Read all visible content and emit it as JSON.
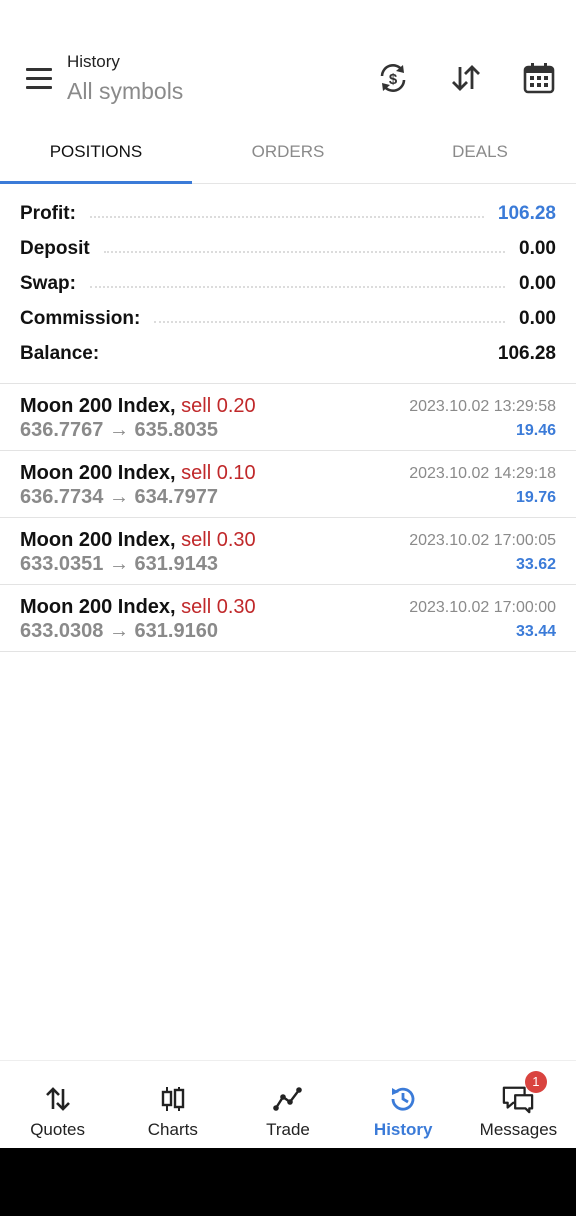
{
  "header": {
    "title_small": "History",
    "title_big": "All symbols"
  },
  "tabs": [
    {
      "label": "POSITIONS",
      "active": true
    },
    {
      "label": "ORDERS",
      "active": false
    },
    {
      "label": "DEALS",
      "active": false
    }
  ],
  "summary": [
    {
      "label": "Profit:",
      "value": "106.28"
    },
    {
      "label": "Deposit",
      "value": "0.00"
    },
    {
      "label": "Swap:",
      "value": "0.00"
    },
    {
      "label": "Commission:",
      "value": "0.00"
    },
    {
      "label": "Balance:",
      "value": "106.28"
    }
  ],
  "deals": [
    {
      "symbol": "Moon 200 Index,",
      "side": "sell 0.20",
      "open": "636.7767",
      "close": "635.8035",
      "time": "2023.10.02 13:29:58",
      "profit": "19.46"
    },
    {
      "symbol": "Moon 200 Index,",
      "side": "sell 0.10",
      "open": "636.7734",
      "close": "634.7977",
      "time": "2023.10.02 14:29:18",
      "profit": "19.76"
    },
    {
      "symbol": "Moon 200 Index,",
      "side": "sell 0.30",
      "open": "633.0351",
      "close": "631.9143",
      "time": "2023.10.02 17:00:05",
      "profit": "33.62"
    },
    {
      "symbol": "Moon 200 Index,",
      "side": "sell 0.30",
      "open": "633.0308",
      "close": "631.9160",
      "time": "2023.10.02 17:00:00",
      "profit": "33.44"
    }
  ],
  "price_arrow": "→",
  "bottom_nav": [
    {
      "label": "Quotes",
      "icon": "quotes-arrows-icon"
    },
    {
      "label": "Charts",
      "icon": "candlestick-icon"
    },
    {
      "label": "Trade",
      "icon": "trade-line-icon"
    },
    {
      "label": "History",
      "icon": "history-clock-icon",
      "active": true
    },
    {
      "label": "Messages",
      "icon": "messages-icon",
      "badge": "1"
    }
  ],
  "colors": {
    "accent": "#3b7bd8",
    "sell": "#c0282a",
    "badge": "#d9433f"
  }
}
